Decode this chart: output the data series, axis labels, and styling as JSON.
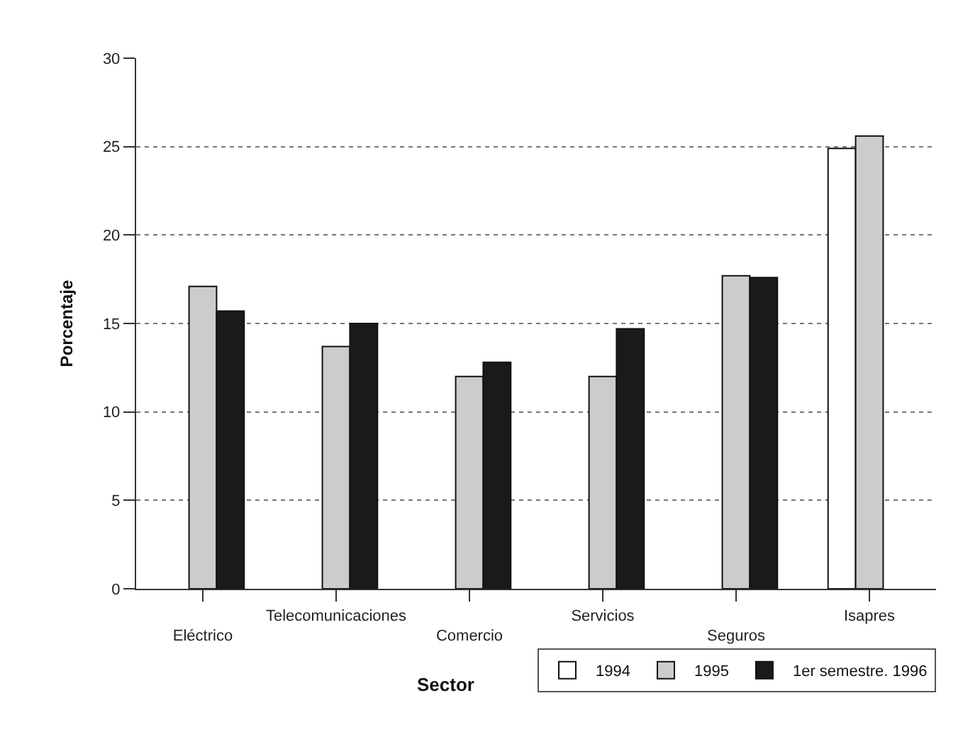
{
  "chart_data": {
    "type": "bar",
    "xlabel": "Sector",
    "ylabel": "Porcentaje",
    "categories": [
      "Eléctrico",
      "Telecomunicaciones",
      "Comercio",
      "Servicios",
      "Seguros",
      "Isapres"
    ],
    "series": [
      {
        "name": "1994",
        "color": "#ffffff",
        "values": [
          null,
          null,
          null,
          null,
          null,
          24.9
        ]
      },
      {
        "name": "1995",
        "color": "#cccccc",
        "values": [
          17.1,
          13.7,
          12.0,
          12.0,
          17.7,
          25.6
        ]
      },
      {
        "name": "1er semestre. 1996",
        "color": "#1a1a1a",
        "values": [
          15.7,
          15.0,
          12.8,
          14.7,
          17.6,
          null
        ]
      }
    ],
    "ylim": [
      0,
      30
    ],
    "yticks": [
      0,
      5,
      10,
      15,
      20,
      25,
      30
    ],
    "grid": "y",
    "legend": "bottom right"
  }
}
